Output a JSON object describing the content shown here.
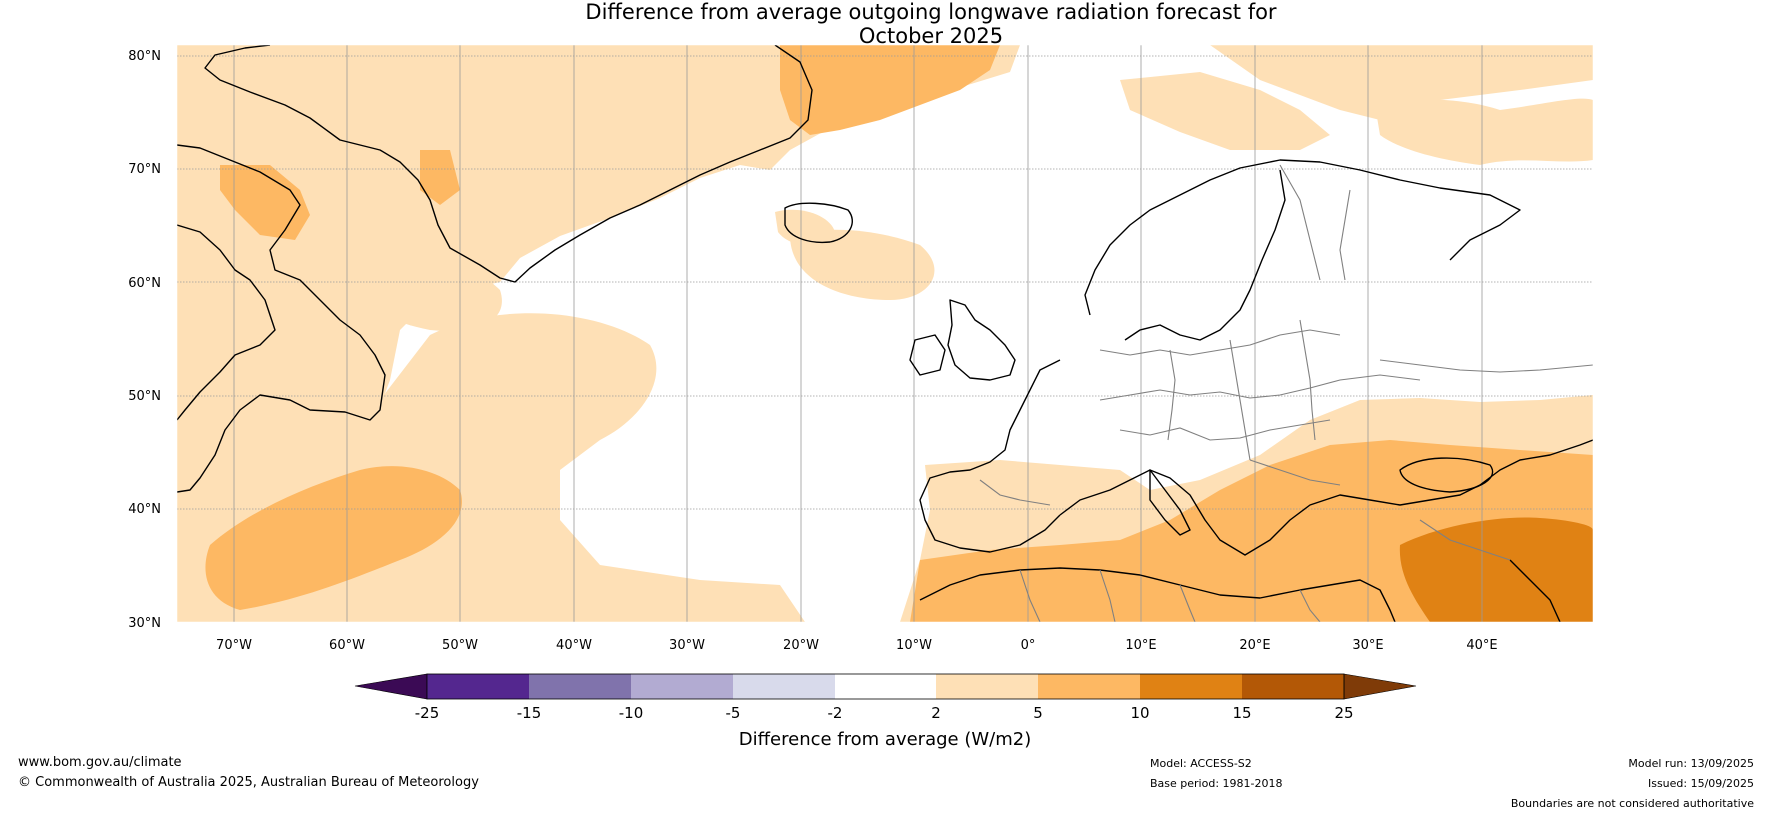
{
  "title": {
    "line1": "Difference from average outgoing longwave radiation forecast for",
    "line2": "October 2025"
  },
  "map": {
    "lat_labels": [
      "80°N",
      "70°N",
      "60°N",
      "50°N",
      "40°N",
      "30°N"
    ],
    "lon_labels": [
      "70°W",
      "60°W",
      "50°W",
      "40°W",
      "30°W",
      "20°W",
      "10°W",
      "0°",
      "10°E",
      "20°E",
      "30°E",
      "40°E"
    ],
    "extent": {
      "lon_min": -75,
      "lon_max": 50,
      "lat_min": 30,
      "lat_max": 81
    },
    "colors": {
      "coast": "#000000",
      "borders": "#808080",
      "grid": "#808080"
    }
  },
  "colorbar": {
    "label": "Difference from average (W/m2)",
    "ticks": [
      "-25",
      "-15",
      "-10",
      "-5",
      "-2",
      "2",
      "5",
      "10",
      "15",
      "25"
    ],
    "low_extend_color": "#3b0a55",
    "high_extend_color": "#7f3b08",
    "bins": [
      {
        "color": "#54278f"
      },
      {
        "color": "#8073ac"
      },
      {
        "color": "#b2abd2"
      },
      {
        "color": "#d8daeb"
      },
      {
        "color": "#ffffff"
      },
      {
        "color": "#fee0b6"
      },
      {
        "color": "#fdb863"
      },
      {
        "color": "#e08214"
      },
      {
        "color": "#b35806"
      }
    ]
  },
  "footer": {
    "website": "www.bom.gov.au/climate",
    "copyright": "© Commonwealth of Australia 2025, Australian Bureau of Meteorology",
    "model": "Model: ACCESS-S2",
    "base_period": "Base period: 1981-2018",
    "model_run": "Model run: 13/09/2025",
    "issued": "Issued: 15/09/2025",
    "disclaimer": "Boundaries are not considered authoritative"
  }
}
